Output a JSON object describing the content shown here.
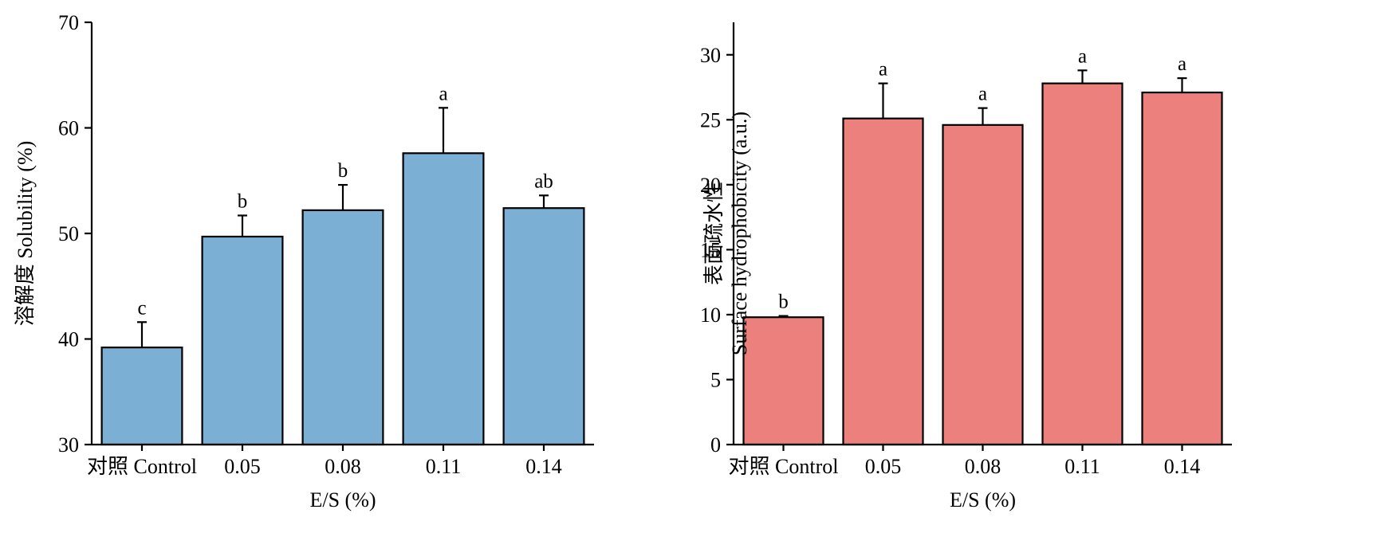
{
  "figure": {
    "background": "#ffffff"
  },
  "chart_data": [
    {
      "type": "bar",
      "categories": [
        "对照 Control",
        "0.05",
        "0.08",
        "0.11",
        "0.14"
      ],
      "values": [
        39.2,
        49.7,
        52.2,
        57.6,
        52.4
      ],
      "errors": [
        2.4,
        2.0,
        2.4,
        4.3,
        1.2
      ],
      "significance": [
        "c",
        "b",
        "b",
        "a",
        "ab"
      ],
      "title": "",
      "xlabel": "E/S (%)",
      "ylabel": "溶解度 Solubility (%)",
      "ylabel_lines": [
        "溶解度 Solubility (%)"
      ],
      "ylim": [
        30,
        70
      ],
      "yticks": [
        30,
        40,
        50,
        60,
        70
      ],
      "bar_color": "#7bafd4",
      "grid": false,
      "legend": "none"
    },
    {
      "type": "bar",
      "categories": [
        "对照 Control",
        "0.05",
        "0.08",
        "0.11",
        "0.14"
      ],
      "values": [
        9.8,
        25.1,
        24.6,
        27.8,
        27.1
      ],
      "errors": [
        0.1,
        2.7,
        1.3,
        1.0,
        1.1
      ],
      "significance": [
        "b",
        "a",
        "a",
        "a",
        "a"
      ],
      "title": "",
      "xlabel": "E/S (%)",
      "ylabel": "表面疏水性 Surface hydrophobicity (a.u.)",
      "ylabel_lines": [
        "表面疏水性",
        "Surface hydrophobicity (a.u.)"
      ],
      "ylim": [
        0,
        32.5
      ],
      "yticks": [
        0,
        5,
        10,
        15,
        20,
        25,
        30
      ],
      "bar_color": "#ec807c",
      "grid": false,
      "legend": "none"
    }
  ]
}
